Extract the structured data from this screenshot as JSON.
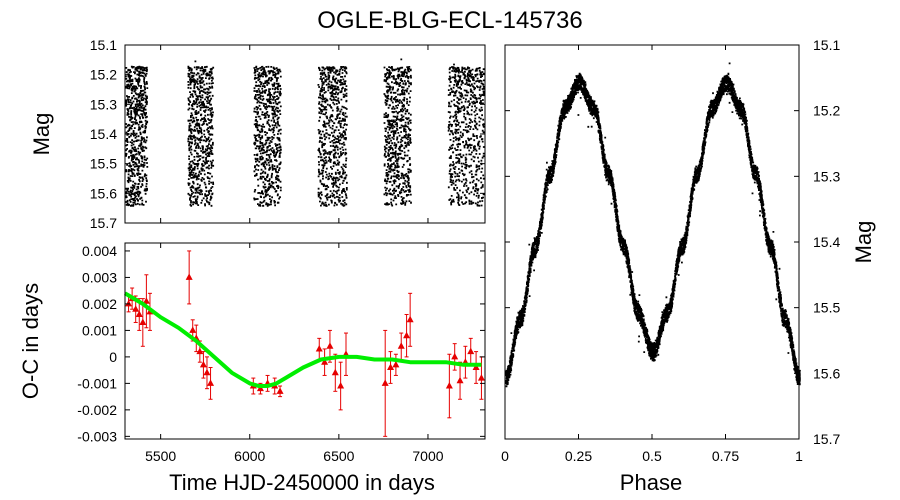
{
  "title": "OGLE-BLG-ECL-145736",
  "colors": {
    "data": "#000000",
    "oc_points": "#e60000",
    "fit": "#00ee00"
  },
  "chart_data": [
    {
      "type": "scatter",
      "panel": "light-curve-time",
      "xlim": [
        5300,
        7320
      ],
      "ylim": [
        15.7,
        15.1
      ],
      "y_inverted": true,
      "ylabel": "Mag",
      "yticks": [
        "15.1",
        "15.2",
        "15.3",
        "15.4",
        "15.5",
        "15.6",
        "15.7"
      ],
      "yticks_values": [
        15.1,
        15.2,
        15.3,
        15.4,
        15.5,
        15.6,
        15.7
      ],
      "seasons": [
        {
          "start": 5300,
          "end": 5420
        },
        {
          "start": 5650,
          "end": 5790
        },
        {
          "start": 6020,
          "end": 6170
        },
        {
          "start": 6380,
          "end": 6540
        },
        {
          "start": 6750,
          "end": 6900
        },
        {
          "start": 7110,
          "end": 7310
        }
      ],
      "mag_range": [
        15.17,
        15.64
      ]
    },
    {
      "type": "scatter",
      "panel": "o-c-diagram",
      "xlabel": "Time HJD-2450000 in days",
      "ylabel": "O-C in days",
      "xlim": [
        5300,
        7320
      ],
      "ylim": [
        -0.0031,
        0.0043
      ],
      "xticks": [
        "5500",
        "6000",
        "6500",
        "7000"
      ],
      "xticks_values": [
        5500,
        6000,
        6500,
        7000
      ],
      "yticks": [
        "0.004",
        "0.003",
        "0.002",
        "0.001",
        "0",
        "-0.001",
        "-0.002",
        "-0.003"
      ],
      "yticks_values": [
        0.004,
        0.003,
        0.002,
        0.001,
        0,
        -0.001,
        -0.002,
        -0.003
      ],
      "points": [
        {
          "x": 5320,
          "y": 0.002,
          "err": 0.0003
        },
        {
          "x": 5340,
          "y": 0.0022,
          "err": 0.0004
        },
        {
          "x": 5360,
          "y": 0.0018,
          "err": 0.0005
        },
        {
          "x": 5380,
          "y": 0.0016,
          "err": 0.0006
        },
        {
          "x": 5400,
          "y": 0.0013,
          "err": 0.0009
        },
        {
          "x": 5420,
          "y": 0.0021,
          "err": 0.001
        },
        {
          "x": 5440,
          "y": 0.0017,
          "err": 0.0007
        },
        {
          "x": 5660,
          "y": 0.003,
          "err": 0.001
        },
        {
          "x": 5680,
          "y": 0.001,
          "err": 0.0004
        },
        {
          "x": 5700,
          "y": 0.0007,
          "err": 0.0005
        },
        {
          "x": 5720,
          "y": 0.0002,
          "err": 0.0004
        },
        {
          "x": 5740,
          "y": -0.0003,
          "err": 0.0005
        },
        {
          "x": 5760,
          "y": -0.0006,
          "err": 0.0006
        },
        {
          "x": 5780,
          "y": -0.001,
          "err": 0.0006
        },
        {
          "x": 6020,
          "y": -0.0011,
          "err": 0.0003
        },
        {
          "x": 6060,
          "y": -0.0012,
          "err": 0.0002
        },
        {
          "x": 6100,
          "y": -0.001,
          "err": 0.0003
        },
        {
          "x": 6140,
          "y": -0.0011,
          "err": 0.0003
        },
        {
          "x": 6170,
          "y": -0.0013,
          "err": 0.0002
        },
        {
          "x": 6390,
          "y": 0.0003,
          "err": 0.0004
        },
        {
          "x": 6420,
          "y": -0.0002,
          "err": 0.0005
        },
        {
          "x": 6450,
          "y": 0.0004,
          "err": 0.0006
        },
        {
          "x": 6480,
          "y": -0.0006,
          "err": 0.0007
        },
        {
          "x": 6510,
          "y": -0.0011,
          "err": 0.0009
        },
        {
          "x": 6540,
          "y": 0.0001,
          "err": 0.0008
        },
        {
          "x": 6760,
          "y": -0.001,
          "err": 0.002
        },
        {
          "x": 6790,
          "y": -0.0004,
          "err": 0.0006
        },
        {
          "x": 6820,
          "y": -0.0003,
          "err": 0.0004
        },
        {
          "x": 6850,
          "y": 0.0004,
          "err": 0.0005
        },
        {
          "x": 6880,
          "y": 0.0008,
          "err": 0.0008
        },
        {
          "x": 6900,
          "y": 0.0014,
          "err": 0.001
        },
        {
          "x": 7120,
          "y": -0.0011,
          "err": 0.0012
        },
        {
          "x": 7150,
          "y": 0.0,
          "err": 0.0005
        },
        {
          "x": 7180,
          "y": -0.0009,
          "err": 0.0007
        },
        {
          "x": 7210,
          "y": -0.0002,
          "err": 0.0006
        },
        {
          "x": 7240,
          "y": 0.0002,
          "err": 0.0005
        },
        {
          "x": 7270,
          "y": -0.0004,
          "err": 0.0006
        },
        {
          "x": 7300,
          "y": -0.0008,
          "err": 0.0008
        }
      ],
      "fit": {
        "x": [
          5300,
          5400,
          5500,
          5600,
          5700,
          5800,
          5900,
          6000,
          6050,
          6100,
          6150,
          6200,
          6300,
          6400,
          6500,
          6600,
          6700,
          6800,
          6900,
          7000,
          7100,
          7200,
          7300
        ],
        "y": [
          0.0024,
          0.002,
          0.0015,
          0.0011,
          0.0006,
          0.0,
          -0.0006,
          -0.001,
          -0.0011,
          -0.0011,
          -0.001,
          -0.0008,
          -0.0004,
          -0.0001,
          0.0,
          0.0,
          -0.0001,
          -0.0001,
          -0.0002,
          -0.0002,
          -0.0002,
          -0.0003,
          -0.0003
        ]
      }
    },
    {
      "type": "scatter",
      "panel": "phased-light-curve",
      "xlabel": "Phase",
      "ylabel": "Mag",
      "xlim": [
        0,
        1
      ],
      "ylim": [
        15.7,
        15.1
      ],
      "y_inverted": true,
      "xticks": [
        "0",
        "0.25",
        "0.5",
        "0.75",
        "1"
      ],
      "xticks_values": [
        0,
        0.25,
        0.5,
        0.75,
        1
      ],
      "yticks": [
        "15.1",
        "15.2",
        "15.3",
        "15.4",
        "15.5",
        "15.6",
        "15.7"
      ],
      "yticks_values": [
        15.1,
        15.2,
        15.3,
        15.4,
        15.5,
        15.6,
        15.7
      ],
      "curve": {
        "phase": [
          0.0,
          0.05,
          0.1,
          0.15,
          0.2,
          0.25,
          0.3,
          0.35,
          0.4,
          0.45,
          0.5,
          0.55,
          0.6,
          0.65,
          0.7,
          0.75,
          0.8,
          0.85,
          0.9,
          0.95,
          1.0
        ],
        "mag": [
          15.6,
          15.51,
          15.4,
          15.29,
          15.19,
          15.15,
          15.19,
          15.29,
          15.4,
          15.5,
          15.56,
          15.5,
          15.4,
          15.29,
          15.19,
          15.15,
          15.19,
          15.29,
          15.4,
          15.51,
          15.6
        ]
      }
    }
  ]
}
